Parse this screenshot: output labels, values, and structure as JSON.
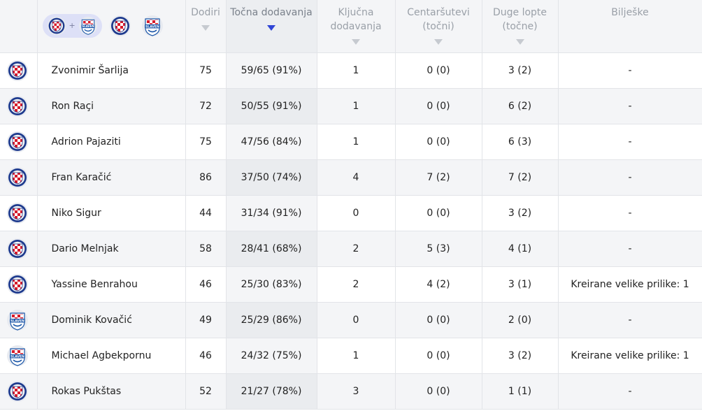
{
  "headers": {
    "dodiri": "Dodiri",
    "tocna_line1": "Točna dodavanja",
    "kljucna_line1": "Ključna",
    "kljucna_line2": "dodavanja",
    "centar_line1": "Centaršutevi",
    "centar_line2": "(točni)",
    "duge_line1": "Duge lopte",
    "duge_line2": "(točne)",
    "biljeske": "Bilješke"
  },
  "filters": {
    "plus": "+"
  },
  "badges": {
    "hajduk": {
      "name": "hajduk",
      "colors": {
        "rim": "#1d3a8e",
        "checker": "#d61a2a"
      }
    },
    "slaven": {
      "name": "slaven",
      "text": "SLAVEN",
      "colors": {
        "blue": "#1b56a8",
        "red": "#d61a2a"
      }
    }
  },
  "players": [
    {
      "club": "hajduk",
      "name": "Zvonimir Šarlija",
      "dodiri": "75",
      "tocna": "59/65 (91%)",
      "kljucna": "1",
      "centar": "0 (0)",
      "duge": "3 (2)",
      "biljeske": "-"
    },
    {
      "club": "hajduk",
      "name": "Ron Raçi",
      "dodiri": "72",
      "tocna": "50/55 (91%)",
      "kljucna": "1",
      "centar": "0 (0)",
      "duge": "6 (2)",
      "biljeske": "-"
    },
    {
      "club": "hajduk",
      "name": "Adrion Pajaziti",
      "dodiri": "75",
      "tocna": "47/56 (84%)",
      "kljucna": "1",
      "centar": "0 (0)",
      "duge": "6 (3)",
      "biljeske": "-"
    },
    {
      "club": "hajduk",
      "name": "Fran Karačić",
      "dodiri": "86",
      "tocna": "37/50 (74%)",
      "kljucna": "4",
      "centar": "7 (2)",
      "duge": "7 (2)",
      "biljeske": "-"
    },
    {
      "club": "hajduk",
      "name": "Niko Sigur",
      "dodiri": "44",
      "tocna": "31/34 (91%)",
      "kljucna": "0",
      "centar": "0 (0)",
      "duge": "3 (2)",
      "biljeske": "-"
    },
    {
      "club": "hajduk",
      "name": "Dario Melnjak",
      "dodiri": "58",
      "tocna": "28/41 (68%)",
      "kljucna": "2",
      "centar": "5 (3)",
      "duge": "4 (1)",
      "biljeske": "-"
    },
    {
      "club": "hajduk",
      "name": "Yassine Benrahou",
      "dodiri": "46",
      "tocna": "25/30 (83%)",
      "kljucna": "2",
      "centar": "4 (2)",
      "duge": "3 (1)",
      "biljeske": "Kreirane velike prilike: 1"
    },
    {
      "club": "slaven",
      "name": "Dominik Kovačić",
      "dodiri": "49",
      "tocna": "25/29 (86%)",
      "kljucna": "0",
      "centar": "0 (0)",
      "duge": "2 (0)",
      "biljeske": "-"
    },
    {
      "club": "slaven",
      "name": "Michael Agbekpornu",
      "dodiri": "46",
      "tocna": "24/32 (75%)",
      "kljucna": "1",
      "centar": "0 (0)",
      "duge": "3 (2)",
      "biljeske": "Kreirane velike prilike: 1"
    },
    {
      "club": "hajduk",
      "name": "Rokas Pukštas",
      "dodiri": "52",
      "tocna": "21/27 (78%)",
      "kljucna": "3",
      "centar": "0 (0)",
      "duge": "1 (1)",
      "biljeske": "-"
    }
  ]
}
